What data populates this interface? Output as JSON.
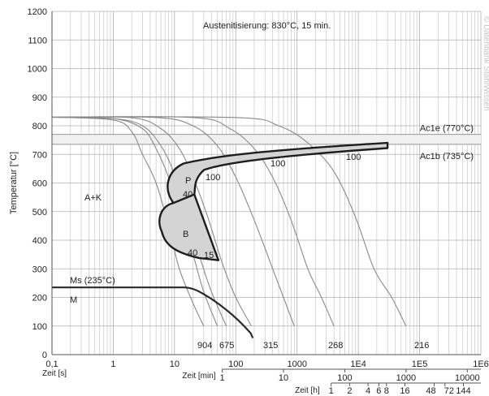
{
  "chart_data": {
    "type": "line",
    "title": "Austenitisierung: 830°C, 15 min.",
    "ylabel": "Temperatur [°C]",
    "ylim": [
      0,
      1200
    ],
    "y_ticks": [
      "0",
      "100",
      "200",
      "300",
      "400",
      "500",
      "600",
      "700",
      "800",
      "900",
      "1000",
      "1100",
      "1200"
    ],
    "x_axes": [
      {
        "label": "Zeit [s]",
        "ticks": [
          "0,1",
          "1",
          "10",
          "100",
          "1000",
          "1E4",
          "1E5",
          "1E6"
        ]
      },
      {
        "label": "Zeit [min]",
        "ticks": [
          "1",
          "10",
          "100",
          "1000",
          "10000"
        ]
      },
      {
        "label": "Zeit [h]",
        "ticks": [
          "1",
          "2",
          "4",
          "6",
          "8",
          "16",
          "48",
          "72",
          "144"
        ]
      }
    ],
    "xlim_seconds": [
      0.1,
      1000000
    ],
    "grid": true,
    "bands": [
      {
        "label": "Ac1e (770°C)",
        "value": 770
      },
      {
        "label": "Ac1b (735°C)",
        "value": 735
      }
    ],
    "regions": [
      "A+K",
      "P",
      "B",
      "M"
    ],
    "ms_label": "Ms (235°C)",
    "cooling_curves": [
      {
        "end_label": "904",
        "x": [
          0.1,
          1,
          2,
          3,
          5,
          8,
          12,
          20,
          30
        ],
        "y": [
          830,
          820,
          780,
          700,
          600,
          450,
          300,
          180,
          100
        ]
      },
      {
        "end_label": "675",
        "x": [
          0.1,
          1,
          3,
          5,
          8,
          12,
          20,
          30,
          50
        ],
        "y": [
          830,
          825,
          790,
          720,
          620,
          500,
          350,
          220,
          100
        ]
      },
      {
        "end_label": "",
        "x": [
          0.1,
          1,
          3,
          6,
          10,
          15,
          25,
          40,
          70
        ],
        "y": [
          830,
          825,
          800,
          730,
          630,
          500,
          350,
          220,
          100
        ]
      },
      {
        "end_label": "315",
        "x": [
          0.1,
          2,
          6,
          12,
          20,
          35,
          60,
          100,
          180
        ],
        "y": [
          830,
          828,
          790,
          720,
          620,
          480,
          320,
          200,
          100
        ]
      },
      {
        "end_label": "",
        "x": [
          0.1,
          5,
          20,
          50,
          100,
          200,
          400,
          600,
          900
        ],
        "y": [
          830,
          829,
          800,
          730,
          620,
          470,
          300,
          200,
          100
        ]
      },
      {
        "end_label": "268",
        "x": [
          0.1,
          20,
          80,
          200,
          400,
          800,
          1500,
          2500,
          4000
        ],
        "y": [
          830,
          829,
          790,
          720,
          620,
          470,
          300,
          200,
          100
        ]
      },
      {
        "end_label": "216",
        "x": [
          0.1,
          100,
          500,
          1500,
          4000,
          9000,
          18000,
          35000,
          60000
        ],
        "y": [
          830,
          829,
          800,
          740,
          640,
          480,
          300,
          200,
          100
        ]
      }
    ],
    "annotations": [
      "100",
      "100",
      "100",
      "40",
      "40",
      "15"
    ]
  },
  "watermark": "© Datenbank StahlWissen"
}
